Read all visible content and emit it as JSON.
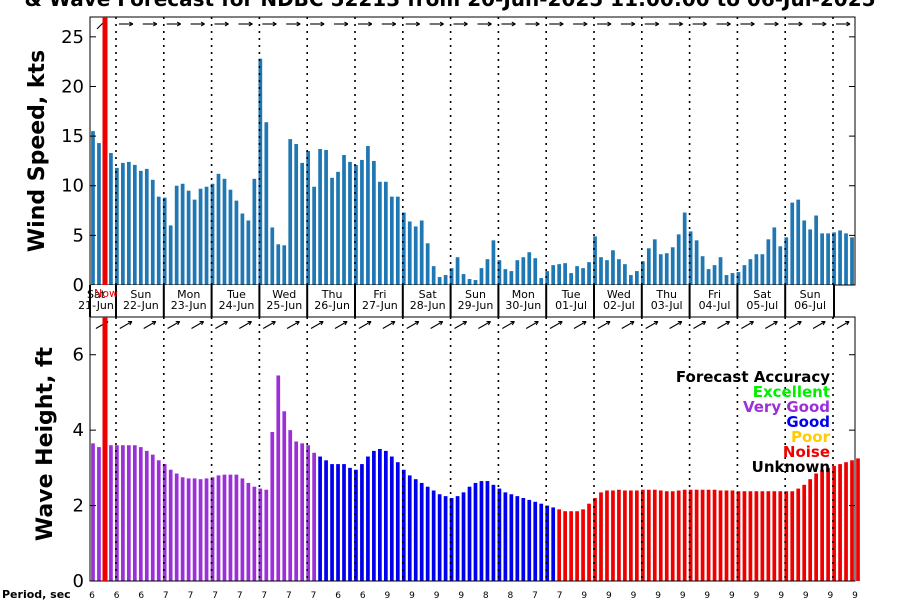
{
  "title": "& Wave Forecast for NDBC 52213 from 20-Jun-2025 11:00:00 to 06-Jul-2025",
  "now_label": "Now",
  "chart_data": [
    {
      "type": "bar",
      "name": "wind",
      "ylabel": "Wind Speed, kts",
      "ylim": [
        0,
        27
      ],
      "yticks": [
        0,
        5,
        10,
        15,
        20,
        25
      ],
      "grid": false,
      "color": "#1f77b4",
      "values": [
        15.5,
        14.3,
        13.9,
        13.3,
        11.8,
        12.3,
        12.4,
        12.1,
        11.5,
        11.7,
        10.6,
        8.9,
        8.8,
        6.0,
        10.0,
        10.2,
        9.5,
        8.6,
        9.7,
        9.9,
        10.2,
        11.2,
        10.7,
        9.6,
        8.5,
        7.2,
        6.5,
        10.7,
        22.8,
        16.4,
        5.8,
        4.1,
        4.0,
        14.7,
        14.2,
        12.3,
        13.5,
        9.9,
        13.7,
        13.6,
        10.8,
        11.4,
        13.1,
        12.4,
        12.1,
        12.6,
        14.0,
        12.5,
        10.4,
        10.4,
        8.9,
        8.9,
        7.3,
        6.4,
        5.9,
        6.5,
        4.2,
        1.9,
        0.8,
        1.0,
        1.7,
        2.8,
        1.1,
        0.6,
        0.5,
        1.7,
        2.6,
        4.5,
        2.5,
        1.6,
        1.4,
        2.5,
        2.8,
        3.3,
        2.7,
        0.7,
        1.4,
        2.0,
        2.1,
        2.2,
        1.2,
        1.9,
        1.7,
        2.3,
        4.9,
        2.8,
        2.5,
        3.5,
        2.6,
        2.1,
        1.0,
        1.4,
        2.4,
        3.7,
        4.6,
        3.1,
        3.2,
        3.8,
        5.1,
        7.3,
        5.4,
        4.5,
        2.9,
        1.6,
        2.0,
        2.8,
        1.0,
        1.2,
        1.3,
        2.0,
        2.6,
        3.1,
        3.1,
        4.6,
        5.8,
        3.9,
        4.8,
        8.3,
        8.6,
        6.5,
        5.6,
        7.0,
        5.2,
        5.2,
        5.3,
        5.5,
        5.2,
        4.8
      ]
    },
    {
      "type": "bar",
      "name": "wave",
      "ylabel": "Wave Height, ft",
      "ylim": [
        0,
        7
      ],
      "yticks": [
        0,
        2,
        4,
        6
      ],
      "grid": false,
      "values": [
        3.65,
        3.55,
        3.55,
        3.6,
        3.6,
        3.6,
        3.6,
        3.6,
        3.55,
        3.45,
        3.35,
        3.2,
        3.1,
        2.95,
        2.85,
        2.75,
        2.72,
        2.72,
        2.7,
        2.72,
        2.75,
        2.8,
        2.82,
        2.82,
        2.82,
        2.72,
        2.6,
        2.5,
        2.45,
        2.42,
        3.95,
        5.45,
        4.5,
        4.0,
        3.7,
        3.65,
        3.6,
        3.4,
        3.3,
        3.2,
        3.1,
        3.1,
        3.1,
        3.0,
        2.95,
        3.1,
        3.3,
        3.45,
        3.5,
        3.45,
        3.3,
        3.15,
        2.95,
        2.8,
        2.7,
        2.6,
        2.5,
        2.4,
        2.3,
        2.25,
        2.2,
        2.25,
        2.35,
        2.5,
        2.6,
        2.65,
        2.65,
        2.55,
        2.45,
        2.35,
        2.3,
        2.25,
        2.2,
        2.15,
        2.1,
        2.05,
        2.0,
        1.95,
        1.9,
        1.85,
        1.85,
        1.85,
        1.9,
        2.05,
        2.2,
        2.35,
        2.4,
        2.4,
        2.42,
        2.4,
        2.4,
        2.4,
        2.42,
        2.42,
        2.42,
        2.4,
        2.38,
        2.38,
        2.4,
        2.42,
        2.42,
        2.42,
        2.42,
        2.42,
        2.42,
        2.4,
        2.4,
        2.4,
        2.38,
        2.38,
        2.38,
        2.38,
        2.38,
        2.38,
        2.38,
        2.38,
        2.38,
        2.38,
        2.45,
        2.55,
        2.7,
        2.85,
        2.95,
        3.0,
        3.05,
        3.1,
        3.15,
        3.2,
        3.25
      ],
      "accuracy": [
        "Very Good",
        "Very Good",
        "Very Good",
        "Very Good",
        "Very Good",
        "Very Good",
        "Very Good",
        "Very Good",
        "Very Good",
        "Very Good",
        "Very Good",
        "Very Good",
        "Very Good",
        "Very Good",
        "Very Good",
        "Very Good",
        "Very Good",
        "Very Good",
        "Very Good",
        "Very Good",
        "Very Good",
        "Very Good",
        "Very Good",
        "Very Good",
        "Very Good",
        "Very Good",
        "Very Good",
        "Very Good",
        "Very Good",
        "Very Good",
        "Very Good",
        "Very Good",
        "Very Good",
        "Very Good",
        "Very Good",
        "Very Good",
        "Very Good",
        "Very Good",
        "Good",
        "Good",
        "Good",
        "Good",
        "Good",
        "Good",
        "Good",
        "Good",
        "Good",
        "Good",
        "Good",
        "Good",
        "Good",
        "Good",
        "Good",
        "Good",
        "Good",
        "Good",
        "Good",
        "Good",
        "Good",
        "Good",
        "Good",
        "Good",
        "Good",
        "Good",
        "Good",
        "Good",
        "Good",
        "Good",
        "Good",
        "Good",
        "Good",
        "Good",
        "Good",
        "Good",
        "Good",
        "Good",
        "Good",
        "Good",
        "Noise",
        "Noise",
        "Noise",
        "Noise",
        "Noise",
        "Noise",
        "Noise",
        "Noise",
        "Noise",
        "Noise",
        "Noise",
        "Noise",
        "Noise",
        "Noise",
        "Noise",
        "Noise",
        "Noise",
        "Noise",
        "Noise",
        "Noise",
        "Noise",
        "Noise",
        "Noise",
        "Noise",
        "Noise",
        "Noise",
        "Noise",
        "Noise",
        "Noise",
        "Noise",
        "Noise",
        "Noise",
        "Noise",
        "Noise",
        "Noise",
        "Noise",
        "Noise",
        "Noise",
        "Noise",
        "Noise",
        "Noise",
        "Noise",
        "Noise",
        "Noise",
        "Noise",
        "Noise",
        "Noise",
        "Noise",
        "Noise",
        "Noise",
        "Noise"
      ]
    }
  ],
  "day_labels": [
    {
      "dow": "Sat",
      "date": "21-Jun"
    },
    {
      "dow": "Sun",
      "date": "22-Jun"
    },
    {
      "dow": "Mon",
      "date": "23-Jun"
    },
    {
      "dow": "Tue",
      "date": "24-Jun"
    },
    {
      "dow": "Wed",
      "date": "25-Jun"
    },
    {
      "dow": "Thu",
      "date": "26-Jun"
    },
    {
      "dow": "Fri",
      "date": "27-Jun"
    },
    {
      "dow": "Sat",
      "date": "28-Jun"
    },
    {
      "dow": "Sun",
      "date": "29-Jun"
    },
    {
      "dow": "Mon",
      "date": "30-Jun"
    },
    {
      "dow": "Tue",
      "date": "01-Jul"
    },
    {
      "dow": "Wed",
      "date": "02-Jul"
    },
    {
      "dow": "Thu",
      "date": "03-Jul"
    },
    {
      "dow": "Fri",
      "date": "04-Jul"
    },
    {
      "dow": "Sat",
      "date": "05-Jul"
    },
    {
      "dow": "Sun",
      "date": "06-Jul"
    }
  ],
  "legend": {
    "title": "Forecast Accuracy",
    "items": [
      {
        "label": "Excellent",
        "color": "#00ee00"
      },
      {
        "label": "Very Good",
        "color": "#9b30d9"
      },
      {
        "label": "Good",
        "color": "#0000ee"
      },
      {
        "label": "Poor",
        "color": "#ffcc00"
      },
      {
        "label": "Noise",
        "color": "#ee0000"
      },
      {
        "label": "Unknown",
        "color": "#000000"
      }
    ]
  },
  "period": {
    "label": "Period, sec",
    "values": [
      "6",
      "6",
      "6",
      "7",
      "7",
      "7",
      "7",
      "7",
      "7",
      "7",
      "6",
      "6",
      "9",
      "9",
      "9",
      "9",
      "8",
      "8",
      "7",
      "7",
      "9",
      "9",
      "9",
      "9",
      "9",
      "9",
      "9",
      "9",
      "9",
      "9",
      "9",
      "9"
    ]
  },
  "wind_directions": [
    45,
    90,
    90,
    90,
    90,
    90,
    90,
    90,
    90,
    90,
    90,
    90,
    90,
    90,
    90,
    90,
    90,
    90,
    90,
    90,
    90,
    90,
    90,
    90,
    90,
    90,
    90,
    90,
    90,
    90,
    90,
    90,
    90,
    90,
    90,
    90,
    90,
    90,
    90,
    90,
    90,
    90,
    90,
    90,
    90,
    90,
    90,
    90,
    90,
    90,
    90,
    90,
    90,
    90,
    90,
    90,
    90,
    90,
    90,
    90,
    90,
    90,
    90,
    90,
    90,
    90,
    90,
    90,
    90,
    90,
    90,
    90,
    90,
    90,
    90,
    90,
    90,
    90,
    90,
    90,
    90,
    90,
    90,
    90,
    90,
    90,
    90,
    90,
    90,
    90,
    90,
    90,
    90,
    90,
    90,
    90,
    90,
    90,
    90,
    90,
    90,
    90,
    90,
    90,
    90,
    90,
    90,
    90,
    90,
    90,
    90,
    90,
    90,
    90,
    90,
    90,
    90,
    90,
    90,
    90,
    90,
    90,
    90,
    90,
    90,
    90,
    90,
    90
  ],
  "wave_directions": [
    60,
    60,
    60,
    60,
    60,
    60,
    60,
    60,
    60,
    60,
    60,
    60,
    60,
    60,
    60,
    60,
    60,
    60,
    60,
    60,
    60,
    60,
    60,
    60,
    60,
    60,
    60,
    60,
    60,
    60,
    60,
    60,
    60,
    60,
    60,
    60,
    60,
    60,
    60,
    60,
    60,
    60,
    60,
    60,
    60,
    60,
    60,
    60,
    60,
    60,
    60,
    60,
    60,
    60,
    60,
    60,
    60,
    60,
    60,
    60,
    60,
    60,
    60,
    60,
    60,
    60,
    60,
    60,
    60,
    60,
    60,
    60,
    60,
    60,
    60,
    60,
    60,
    60,
    60,
    60,
    60,
    60,
    60,
    60,
    60,
    60,
    60,
    60,
    60,
    60,
    60,
    60,
    60,
    60,
    60,
    60,
    60,
    60,
    60,
    60,
    60,
    60,
    60,
    60,
    60,
    60,
    60,
    60,
    60,
    60,
    60,
    60,
    60,
    60,
    60,
    60,
    60,
    60,
    60,
    60,
    60,
    60,
    60,
    60,
    60,
    60,
    60,
    60
  ]
}
